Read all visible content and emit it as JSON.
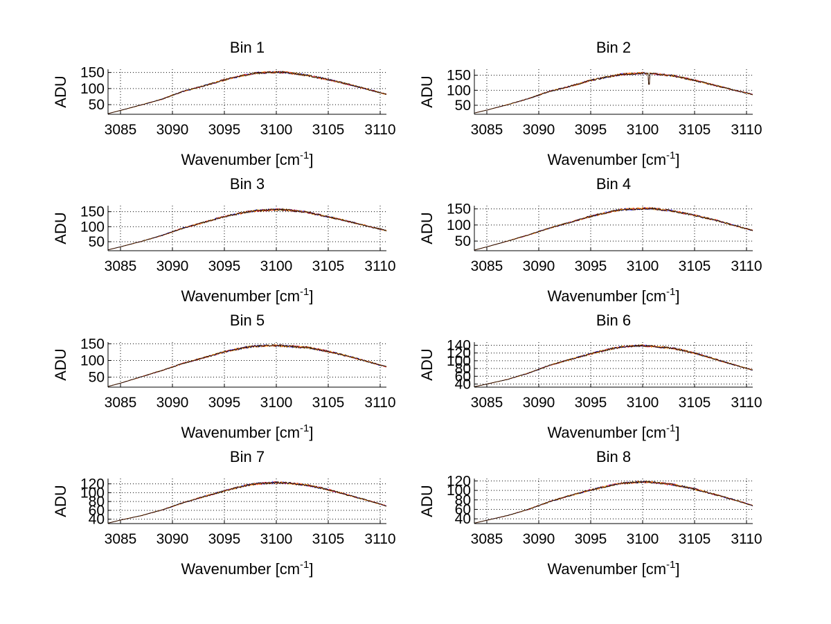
{
  "figure": {
    "xlabel_main": "Wavenumber [cm",
    "xlabel_sup": "-1",
    "xlabel_close": "]",
    "ylabel": "ADU"
  },
  "chart_data": [
    {
      "type": "line",
      "title": "Bin 1",
      "xlabel": "Wavenumber [cm-1]",
      "ylabel": "ADU",
      "xlim": [
        3083.8,
        3110.6
      ],
      "ylim": [
        20,
        160
      ],
      "xticks": [
        3085,
        3090,
        3095,
        3100,
        3105,
        3110
      ],
      "yticks": [
        50,
        100,
        150
      ],
      "grid": true,
      "x": [
        3083.8,
        3085,
        3087,
        3089,
        3091,
        3093,
        3095,
        3097,
        3098,
        3100,
        3101,
        3103,
        3105,
        3107,
        3109,
        3110.6
      ],
      "y": [
        22,
        32,
        49,
        67,
        91,
        108,
        127,
        142,
        148,
        151,
        150,
        141,
        128,
        113,
        96,
        82
      ],
      "series_colors": [
        "#0000ff",
        "#ff0000",
        "#ffa500",
        "#000000"
      ]
    },
    {
      "type": "line",
      "title": "Bin 2",
      "xlabel": "Wavenumber [cm-1]",
      "ylabel": "ADU",
      "xlim": [
        3083.8,
        3110.6
      ],
      "ylim": [
        20,
        170
      ],
      "xticks": [
        3085,
        3090,
        3095,
        3100,
        3105,
        3110
      ],
      "yticks": [
        50,
        100,
        150
      ],
      "grid": true,
      "x": [
        3083.8,
        3085,
        3087,
        3089,
        3091,
        3093,
        3095,
        3097,
        3098,
        3100,
        3101,
        3103,
        3105,
        3107,
        3109,
        3110.6
      ],
      "y": [
        24,
        34,
        52,
        72,
        96,
        113,
        133,
        147,
        153,
        157,
        155,
        148,
        133,
        116,
        99,
        86
      ],
      "dip": {
        "x": 3100.6,
        "y": 120
      },
      "series_colors": [
        "#0000ff",
        "#ff0000",
        "#ffa500",
        "#000000"
      ]
    },
    {
      "type": "line",
      "title": "Bin 3",
      "xlabel": "Wavenumber [cm-1]",
      "ylabel": "ADU",
      "xlim": [
        3083.8,
        3110.6
      ],
      "ylim": [
        20,
        170
      ],
      "xticks": [
        3085,
        3090,
        3095,
        3100,
        3105,
        3110
      ],
      "yticks": [
        50,
        100,
        150
      ],
      "grid": true,
      "x": [
        3083.8,
        3085,
        3087,
        3089,
        3091,
        3093,
        3095,
        3097,
        3098,
        3100,
        3101,
        3103,
        3105,
        3107,
        3109,
        3110.6
      ],
      "y": [
        23,
        33,
        51,
        71,
        95,
        114,
        134,
        148,
        153,
        157,
        156,
        148,
        133,
        117,
        100,
        87
      ],
      "series_colors": [
        "#0000ff",
        "#ff0000",
        "#ffa500",
        "#000000"
      ]
    },
    {
      "type": "line",
      "title": "Bin 4",
      "xlabel": "Wavenumber [cm-1]",
      "ylabel": "ADU",
      "xlim": [
        3083.8,
        3110.6
      ],
      "ylim": [
        20,
        160
      ],
      "xticks": [
        3085,
        3090,
        3095,
        3100,
        3105,
        3110
      ],
      "yticks": [
        50,
        100,
        150
      ],
      "grid": true,
      "x": [
        3083.8,
        3085,
        3087,
        3089,
        3091,
        3093,
        3095,
        3097,
        3098,
        3100,
        3101,
        3103,
        3105,
        3107,
        3109,
        3110.6
      ],
      "y": [
        22,
        32,
        50,
        69,
        90,
        108,
        127,
        142,
        148,
        151,
        151,
        143,
        130,
        115,
        97,
        83
      ],
      "series_colors": [
        "#0000ff",
        "#ff0000",
        "#ffa500",
        "#000000"
      ]
    },
    {
      "type": "line",
      "title": "Bin 5",
      "xlabel": "Wavenumber [cm-1]",
      "ylabel": "ADU",
      "xlim": [
        3083.8,
        3110.6
      ],
      "ylim": [
        20,
        155
      ],
      "xticks": [
        3085,
        3090,
        3095,
        3100,
        3105,
        3110
      ],
      "yticks": [
        50,
        100,
        150
      ],
      "grid": true,
      "x": [
        3083.8,
        3085,
        3087,
        3089,
        3091,
        3093,
        3095,
        3097,
        3098,
        3100,
        3101,
        3103,
        3105,
        3107,
        3109,
        3110.6
      ],
      "y": [
        22,
        32,
        51,
        70,
        91,
        108,
        126,
        139,
        143,
        145,
        143,
        139,
        127,
        112,
        95,
        81
      ],
      "series_colors": [
        "#0000ff",
        "#ff0000",
        "#ffa500",
        "#000000"
      ]
    },
    {
      "type": "line",
      "title": "Bin 6",
      "xlabel": "Wavenumber [cm-1]",
      "ylabel": "ADU",
      "xlim": [
        3083.8,
        3110.6
      ],
      "ylim": [
        32,
        148
      ],
      "xticks": [
        3085,
        3090,
        3095,
        3100,
        3105,
        3110
      ],
      "yticks": [
        40,
        60,
        80,
        100,
        120,
        140
      ],
      "grid": true,
      "x": [
        3083.8,
        3085,
        3087,
        3089,
        3091,
        3093,
        3095,
        3097,
        3098,
        3100,
        3101,
        3103,
        3105,
        3107,
        3109,
        3110.6
      ],
      "y": [
        33,
        40,
        52,
        68,
        88,
        103,
        118,
        131,
        136,
        139,
        137,
        132,
        120,
        104,
        88,
        76
      ],
      "series_colors": [
        "#0000ff",
        "#ff0000",
        "#ffa500",
        "#000000"
      ]
    },
    {
      "type": "line",
      "title": "Bin 7",
      "xlabel": "Wavenumber [cm-1]",
      "ylabel": "ADU",
      "xlim": [
        3083.8,
        3110.6
      ],
      "ylim": [
        30,
        132
      ],
      "xticks": [
        3085,
        3090,
        3095,
        3100,
        3105,
        3110
      ],
      "yticks": [
        40,
        60,
        80,
        100,
        120
      ],
      "grid": true,
      "x": [
        3083.8,
        3085,
        3087,
        3089,
        3091,
        3093,
        3095,
        3097,
        3098,
        3100,
        3101,
        3103,
        3105,
        3107,
        3109,
        3110.6
      ],
      "y": [
        31,
        38,
        48,
        61,
        77,
        91,
        104,
        116,
        120,
        123,
        122,
        117,
        107,
        94,
        81,
        70
      ],
      "series_colors": [
        "#0000ff",
        "#ff0000",
        "#ffa500",
        "#000000"
      ]
    },
    {
      "type": "line",
      "title": "Bin 8",
      "xlabel": "Wavenumber [cm-1]",
      "ylabel": "ADU",
      "xlim": [
        3083.8,
        3110.6
      ],
      "ylim": [
        30,
        125
      ],
      "xticks": [
        3085,
        3090,
        3095,
        3100,
        3105,
        3110
      ],
      "yticks": [
        40,
        60,
        80,
        100,
        120
      ],
      "grid": true,
      "x": [
        3083.8,
        3085,
        3087,
        3089,
        3091,
        3093,
        3095,
        3097,
        3098,
        3100,
        3101,
        3103,
        3105,
        3107,
        3109,
        3110.6
      ],
      "y": [
        31,
        37,
        47,
        60,
        76,
        89,
        101,
        111,
        115,
        118,
        117,
        112,
        103,
        91,
        79,
        68
      ],
      "series_colors": [
        "#0000ff",
        "#ff0000",
        "#ffa500",
        "#000000"
      ]
    }
  ]
}
